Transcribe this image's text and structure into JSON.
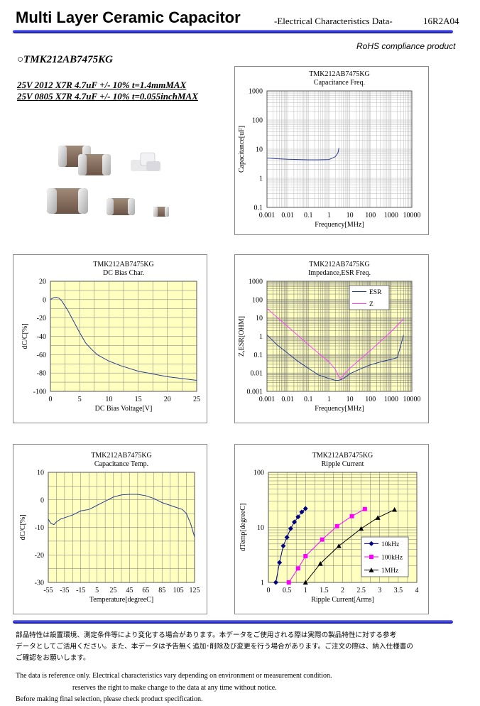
{
  "header": {
    "title": "Multi Layer Ceramic Capacitor",
    "subtitle": "-Electrical Characteristics Data-",
    "code": "16R2A04",
    "rohs": "RoHS compliance product"
  },
  "product": {
    "part_number": "○TMK212AB7475KG",
    "spec_line_1": "25V 2012 X7R 4.7uF +/- 10% t=1.4mmMAX",
    "spec_line_2": "25V 0805 X7R 4.7uF +/- 10% t=0.055inchMAX"
  },
  "chart_data": [
    {
      "id": "cap_freq",
      "type": "line",
      "title": "TMK212AB7475KG",
      "subtitle": "Capacitance Freq.",
      "xlabel": "Frequency[MHz]",
      "ylabel": "Capacitance[uF]",
      "xscale": "log",
      "yscale": "log",
      "xlim": [
        0.001,
        10000
      ],
      "ylim": [
        0.1,
        1000
      ],
      "xticks": [
        "0.001",
        "0.01",
        "0.1",
        "1",
        "10",
        "100",
        "1000",
        "10000"
      ],
      "yticks": [
        "0.1",
        "1",
        "10",
        "100",
        "1000"
      ],
      "series": [
        {
          "color": "#2a3f8f",
          "x": [
            0.001,
            0.003,
            0.01,
            0.03,
            0.1,
            0.3,
            1,
            2,
            2.7,
            3
          ],
          "y": [
            5.0,
            4.7,
            4.5,
            4.4,
            4.3,
            4.3,
            4.4,
            5.5,
            7.5,
            11
          ]
        }
      ]
    },
    {
      "id": "dc_bias",
      "type": "line",
      "title": "TMK212AB7475KG",
      "subtitle": "DC Bias Char.",
      "xlabel": "DC Bias Voltage[V]",
      "ylabel": "dC/C[%]",
      "xlim": [
        0,
        25
      ],
      "ylim": [
        -100,
        20
      ],
      "xticks": [
        "0",
        "5",
        "10",
        "15",
        "20",
        "25"
      ],
      "yticks": [
        "20",
        "0",
        "-20",
        "-40",
        "-60",
        "-80",
        "-100"
      ],
      "series": [
        {
          "color": "#2a3f8f",
          "x": [
            0,
            0.5,
            1,
            1.5,
            2,
            3,
            4,
            5,
            6,
            7,
            8,
            10,
            12,
            15,
            20,
            25
          ],
          "y": [
            0,
            2,
            2.5,
            1.5,
            -2,
            -12,
            -24,
            -36,
            -47,
            -54,
            -60,
            -67,
            -72,
            -78,
            -84,
            -88
          ]
        }
      ]
    },
    {
      "id": "impedance",
      "type": "line",
      "title": "TMK212AB7475KG",
      "subtitle": "Impedance,ESR Freq.",
      "xlabel": "Frequency[MHz]",
      "ylabel": "Z,ESR[OHM]",
      "xscale": "log",
      "yscale": "log",
      "xlim": [
        0.001,
        10000
      ],
      "ylim": [
        0.001,
        1000
      ],
      "xticks": [
        "0.001",
        "0.01",
        "0.1",
        "1",
        "10",
        "100",
        "1000",
        "10000"
      ],
      "yticks": [
        "0.001",
        "0.01",
        "0.1",
        "1",
        "10",
        "100",
        "1000"
      ],
      "legend": "top-right",
      "series": [
        {
          "name": "ESR",
          "color": "#2a3f8f",
          "x": [
            0.001,
            0.003,
            0.01,
            0.03,
            0.1,
            0.3,
            1,
            2,
            3,
            4,
            5,
            10,
            30,
            100,
            300,
            1000,
            2000,
            4000
          ],
          "y": [
            1.2,
            0.35,
            0.12,
            0.045,
            0.018,
            0.008,
            0.005,
            0.004,
            0.004,
            0.0045,
            0.005,
            0.009,
            0.016,
            0.028,
            0.04,
            0.055,
            0.07,
            1.2
          ]
        },
        {
          "name": "Z",
          "color": "#ff44ff",
          "x": [
            0.001,
            0.01,
            0.1,
            1,
            2,
            3,
            4,
            5,
            10,
            100,
            1000,
            4000
          ],
          "y": [
            33,
            3.4,
            0.35,
            0.04,
            0.016,
            0.006,
            0.005,
            0.008,
            0.018,
            0.17,
            1.8,
            9
          ]
        }
      ]
    },
    {
      "id": "cap_temp",
      "type": "line",
      "title": "TMK212AB7475KG",
      "subtitle": "Capacitance Temp.",
      "xlabel": "Temperature[degreeC]",
      "ylabel": "dC/C[%]",
      "xlim": [
        -55,
        125
      ],
      "ylim": [
        -30,
        10
      ],
      "xticks": [
        "-55",
        "-35",
        "-15",
        "5",
        "25",
        "45",
        "65",
        "85",
        "105",
        "125"
      ],
      "yticks": [
        "10",
        "0",
        "-10",
        "-20",
        "-30"
      ],
      "series": [
        {
          "color": "#2a3f8f",
          "x": [
            -55,
            -52,
            -48,
            -45,
            -40,
            -35,
            -25,
            -15,
            -5,
            5,
            15,
            25,
            35,
            45,
            55,
            65,
            75,
            85,
            95,
            105,
            110,
            115,
            120,
            125
          ],
          "y": [
            -7,
            -8.5,
            -9,
            -8,
            -7,
            -6.5,
            -5.5,
            -4,
            -3.5,
            -2,
            -0.5,
            1,
            1.8,
            2,
            2,
            1.5,
            0.5,
            -1,
            -2,
            -3,
            -3.5,
            -5,
            -8.5,
            -13.5
          ]
        }
      ]
    },
    {
      "id": "ripple",
      "type": "line",
      "title": "TMK212AB7475KG",
      "subtitle": "Ripple Current",
      "xlabel": "Ripple Current[Arms]",
      "ylabel": "dTemp[degreeC]",
      "yscale": "log",
      "xlim": [
        0,
        4
      ],
      "ylim": [
        1,
        100
      ],
      "xticks": [
        "0",
        "0.5",
        "1",
        "1.5",
        "2",
        "2.5",
        "3",
        "3.5",
        "4"
      ],
      "yticks": [
        "1",
        "10",
        "100"
      ],
      "legend": "bottom-right",
      "series": [
        {
          "name": "10kHz",
          "color": "#000080",
          "marker": "diamond",
          "x": [
            0.2,
            0.3,
            0.4,
            0.5,
            0.6,
            0.7,
            0.8,
            0.9,
            1.0
          ],
          "y": [
            1,
            2.3,
            4.6,
            6.6,
            9.5,
            12.5,
            15.5,
            19,
            22
          ]
        },
        {
          "name": "100kHz",
          "color": "#ff00ff",
          "marker": "square",
          "x": [
            0.55,
            0.8,
            1.0,
            1.45,
            1.85,
            2.25,
            2.6
          ],
          "y": [
            1,
            1.8,
            3,
            6,
            10.5,
            16,
            21.5
          ]
        },
        {
          "name": "1MHz",
          "color": "#000000",
          "marker": "triangle",
          "x": [
            1.0,
            1.4,
            1.9,
            2.5,
            2.95,
            3.4
          ],
          "y": [
            1,
            2.2,
            4.6,
            9.5,
            15,
            21
          ]
        }
      ]
    }
  ],
  "footer": {
    "jp_line_1": "部品特性は設置環境、測定条件等により変化する場合があります。本データをご使用される際は実際の製品特性に対する参考",
    "jp_line_2": "データとしてご活用ください。また、本データは予告無く追加･削除及び変更を行う場合があります。ご注文の際は、納入仕様書の",
    "jp_line_3": "ご確認をお願いします。",
    "en_line_1": "The data is reference only. Electrical characteristics vary depending on environment or measurement condition.",
    "en_line_2": "reserves the right to make change to the data at any time without notice.",
    "en_line_3": "Before making final selection, please check product specification."
  }
}
